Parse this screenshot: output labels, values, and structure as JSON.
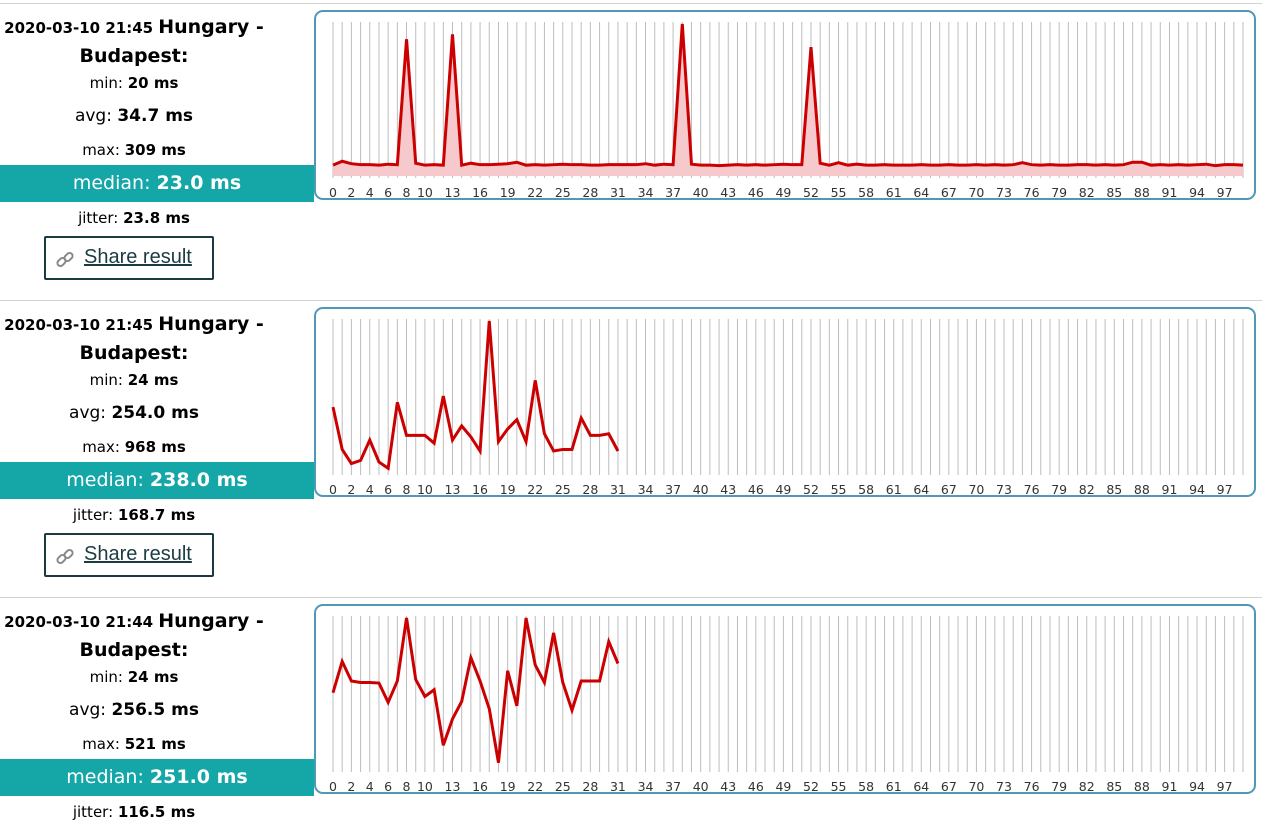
{
  "results": [
    {
      "timestamp": "2020-03-10 21:45",
      "location": "Hungary - Budapest:",
      "min_label": "min: ",
      "min_value": "20 ms",
      "avg_label": "avg: ",
      "avg_value": "34.7 ms",
      "max_label": "max: ",
      "max_value": "309 ms",
      "median_label": "median: ",
      "median_value": "23.0 ms",
      "jitter_label": "jitter: ",
      "jitter_value": "23.8 ms",
      "share_label": "Share result",
      "chart_data": {
        "type": "area",
        "x_tick_labels": [
          "0",
          "2",
          "4",
          "6",
          "8",
          "10",
          "13",
          "16",
          "19",
          "22",
          "25",
          "28",
          "31",
          "34",
          "37",
          "40",
          "43",
          "46",
          "49",
          "52",
          "55",
          "58",
          "61",
          "64",
          "67",
          "70",
          "73",
          "76",
          "79",
          "82",
          "85",
          "88",
          "91",
          "94",
          "97"
        ],
        "xlim": [
          0,
          99
        ],
        "ylim": [
          0,
          309
        ],
        "series": [
          {
            "color": "#cc0000",
            "fill": "#f6c9cc",
            "y": [
              22,
              30,
              25,
              23,
              23,
              22,
              24,
              23,
              278,
              26,
              22,
              23,
              22,
              288,
              22,
              26,
              23,
              23,
              24,
              25,
              28,
              22,
              23,
              22,
              23,
              24,
              23,
              23,
              22,
              22,
              23,
              23,
              23,
              23,
              25,
              22,
              24,
              23,
              309,
              24,
              22,
              22,
              21,
              22,
              23,
              22,
              23,
              22,
              23,
              24,
              23,
              23,
              262,
              26,
              22,
              27,
              22,
              24,
              22,
              22,
              23,
              22,
              22,
              22,
              23,
              22,
              22,
              23,
              22,
              22,
              23,
              22,
              23,
              22,
              23,
              27,
              23,
              22,
              23,
              22,
              22,
              23,
              23,
              22,
              23,
              22,
              23,
              28,
              28,
              22,
              23,
              22,
              23,
              22,
              23,
              24,
              21,
              23,
              23,
              22
            ]
          }
        ]
      }
    },
    {
      "timestamp": "2020-03-10 21:45",
      "location": "Hungary - Budapest:",
      "min_label": "min: ",
      "min_value": "24 ms",
      "avg_label": "avg: ",
      "avg_value": "254.0 ms",
      "max_label": "max: ",
      "max_value": "968 ms",
      "median_label": "median: ",
      "median_value": "238.0 ms",
      "jitter_label": "jitter: ",
      "jitter_value": "168.7 ms",
      "share_label": "Share result",
      "chart_data": {
        "type": "line",
        "x_tick_labels": [
          "0",
          "2",
          "4",
          "6",
          "8",
          "10",
          "13",
          "16",
          "19",
          "22",
          "25",
          "28",
          "31",
          "34",
          "37",
          "40",
          "43",
          "46",
          "49",
          "52",
          "55",
          "58",
          "61",
          "64",
          "67",
          "70",
          "73",
          "76",
          "79",
          "82",
          "85",
          "88",
          "91",
          "94",
          "97"
        ],
        "xlim": [
          0,
          99
        ],
        "ylim": [
          0,
          968
        ],
        "series": [
          {
            "color": "#cc0000",
            "y": [
              420,
              150,
              60,
              80,
              210,
              70,
              30,
              450,
              240,
              240,
              240,
              190,
              490,
              210,
              300,
              230,
              140,
              968,
              200,
              280,
              340,
              200,
              590,
              250,
              140,
              150,
              150,
              350,
              240,
              240,
              250,
              140
            ]
          }
        ]
      }
    },
    {
      "timestamp": "2020-03-10 21:44",
      "location": "Hungary - Budapest:",
      "min_label": "min: ",
      "min_value": "24 ms",
      "avg_label": "avg: ",
      "avg_value": "256.5 ms",
      "max_label": "max: ",
      "max_value": "521 ms",
      "median_label": "median: ",
      "median_value": "251.0 ms",
      "jitter_label": "jitter: ",
      "jitter_value": "116.5 ms",
      "chart_data": {
        "type": "line",
        "x_tick_labels": [
          "0",
          "2",
          "4",
          "6",
          "8",
          "10",
          "13",
          "16",
          "19",
          "22",
          "25",
          "28",
          "31",
          "34",
          "37",
          "40",
          "43",
          "46",
          "49",
          "52",
          "55",
          "58",
          "61",
          "64",
          "67",
          "70",
          "73",
          "76",
          "79",
          "82",
          "85",
          "88",
          "91",
          "94",
          "97"
        ],
        "xlim": [
          0,
          99
        ],
        "ylim": [
          0,
          521
        ],
        "series": [
          {
            "color": "#cc0000",
            "y": [
              265,
              372,
              305,
              300,
              300,
              298,
              232,
              305,
              521,
              310,
              252,
              275,
              85,
              175,
              235,
              385,
              305,
              210,
              25,
              340,
              220,
              521,
              360,
              300,
              470,
              300,
              205,
              305,
              305,
              305,
              440,
              365
            ]
          }
        ]
      }
    }
  ]
}
